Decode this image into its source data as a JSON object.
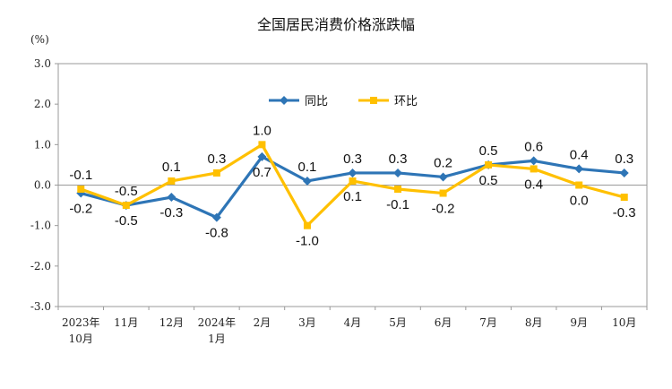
{
  "chart_data": {
    "type": "line",
    "title": "全国居民消费价格涨跌幅",
    "unit": "(%)",
    "ylim": [
      -3.0,
      3.0
    ],
    "yticks": [
      "3.0",
      "2.0",
      "1.0",
      "0.0",
      "-1.0",
      "-2.0",
      "-3.0"
    ],
    "ytick_values": [
      3,
      2,
      1,
      0,
      -1,
      -2,
      -3
    ],
    "categories": [
      [
        "2023年",
        "10月"
      ],
      [
        "11月"
      ],
      [
        "12月"
      ],
      [
        "2024年",
        "1月"
      ],
      [
        "2月"
      ],
      [
        "3月"
      ],
      [
        "4月"
      ],
      [
        "5月"
      ],
      [
        "6月"
      ],
      [
        "7月"
      ],
      [
        "8月"
      ],
      [
        "9月"
      ],
      [
        "10月"
      ]
    ],
    "series": [
      {
        "name": "同比",
        "color": "#2E75B6",
        "marker": "diamond",
        "values": [
          -0.2,
          -0.5,
          -0.3,
          -0.8,
          0.7,
          0.1,
          0.3,
          0.3,
          0.2,
          0.5,
          0.6,
          0.4,
          0.3
        ],
        "labels": [
          "-0.2",
          "-0.5",
          "-0.3",
          "-0.8",
          "0.7",
          "0.1",
          "0.3",
          "0.3",
          "0.2",
          "0.5",
          "0.6",
          "0.4",
          "0.3"
        ],
        "label_side": [
          "below",
          "below",
          "below",
          "below",
          "below",
          "above",
          "above",
          "above",
          "above",
          "above",
          "above",
          "above",
          "above"
        ]
      },
      {
        "name": "环比",
        "color": "#FFC000",
        "marker": "square",
        "values": [
          -0.1,
          -0.5,
          0.1,
          0.3,
          1.0,
          -1.0,
          0.1,
          -0.1,
          -0.2,
          0.5,
          0.4,
          0.0,
          -0.3
        ],
        "labels": [
          "-0.1",
          "-0.5",
          "0.1",
          "0.3",
          "1.0",
          "-1.0",
          "0.1",
          "-0.1",
          "-0.2",
          "0.5",
          "0.4",
          "0.0",
          "-0.3"
        ],
        "label_side": [
          "above",
          "above",
          "above",
          "above",
          "above",
          "below",
          "below",
          "below",
          "below",
          "below",
          "below",
          "below",
          "below"
        ]
      }
    ],
    "grid": false,
    "legend_position": "top-center"
  }
}
